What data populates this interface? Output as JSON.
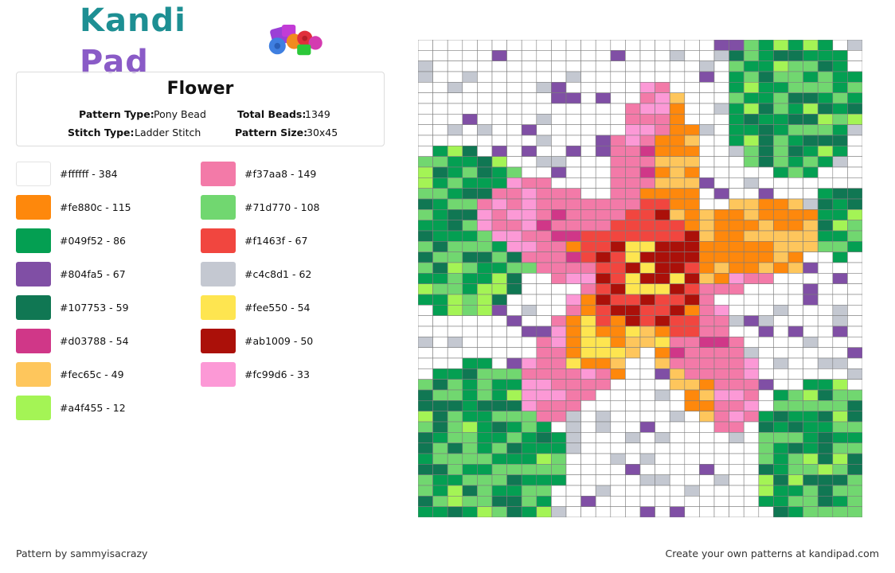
{
  "logo": {
    "part1": "Kandi",
    "part2": " Pad",
    "icon": "beads-icon"
  },
  "pattern": {
    "title": "Flower",
    "type_label": "Pattern Type:",
    "type_value": "Pony Bead",
    "stitch_label": "Stitch Type:",
    "stitch_value": "Ladder Stitch",
    "total_label": "Total Beads:",
    "total_value": "1349",
    "size_label": "Pattern Size:",
    "size_value": "30x45"
  },
  "colors": [
    {
      "hex": "#ffffff",
      "label": "#ffffff - 384"
    },
    {
      "hex": "#fe880c",
      "label": "#fe880c - 115"
    },
    {
      "hex": "#049f52",
      "label": "#049f52 - 86"
    },
    {
      "hex": "#804fa5",
      "label": "#804fa5 - 67"
    },
    {
      "hex": "#107753",
      "label": "#107753 - 59"
    },
    {
      "hex": "#d03788",
      "label": "#d03788 - 54"
    },
    {
      "hex": "#fec65c",
      "label": "#fec65c - 49"
    },
    {
      "hex": "#a4f455",
      "label": "#a4f455 - 12"
    },
    {
      "hex": "#f37aa8",
      "label": "#f37aa8 - 149"
    },
    {
      "hex": "#71d770",
      "label": "#71d770 - 108"
    },
    {
      "hex": "#f1463f",
      "label": "#f1463f - 67"
    },
    {
      "hex": "#c4c8d1",
      "label": "#c4c8d1 - 62"
    },
    {
      "hex": "#fee550",
      "label": "#fee550 - 54"
    },
    {
      "hex": "#ab1009",
      "label": "#ab1009 - 50"
    },
    {
      "hex": "#fc99d6",
      "label": "#fc99d6 - 33"
    }
  ],
  "footer": {
    "left": "Pattern by sammyisacrazy",
    "right": "Create your own patterns at kandipad.com"
  }
}
